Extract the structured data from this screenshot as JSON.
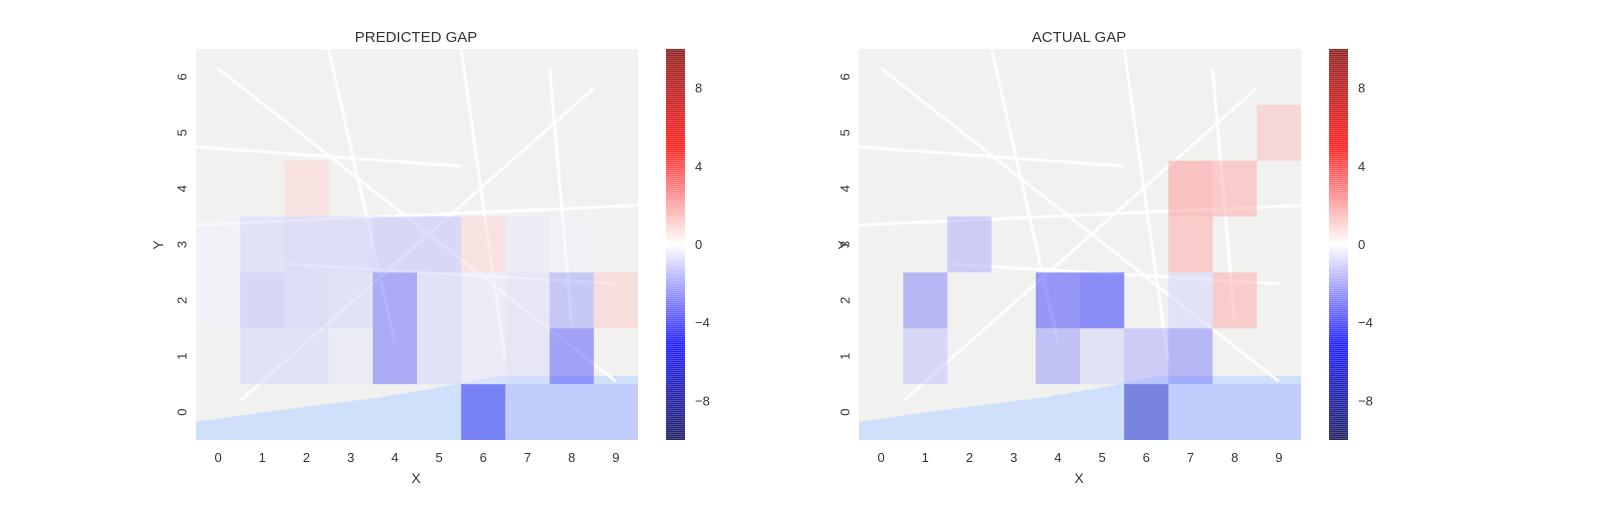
{
  "chart_data": [
    {
      "type": "heatmap",
      "title": "PREDICTED GAP",
      "xlabel": "X",
      "ylabel": "Y",
      "x_ticks": [
        "0",
        "1",
        "2",
        "3",
        "4",
        "5",
        "6",
        "7",
        "8",
        "9"
      ],
      "y_ticks": [
        "0",
        "1",
        "2",
        "3",
        "4",
        "5",
        "6"
      ],
      "colorbar": {
        "ticks": [
          8,
          4,
          0,
          -4,
          -8
        ],
        "tick_labels": [
          "8",
          "4",
          "0",
          "−4",
          "−8"
        ],
        "range": [
          -10,
          10
        ],
        "colormap": "seismic"
      },
      "values": [
        [
          0,
          0,
          0,
          0,
          0,
          0,
          -5.5,
          -1.5,
          -1.5,
          -1.5
        ],
        [
          0,
          -1,
          -1,
          -0.5,
          -3.5,
          -1,
          -0.5,
          -0.8,
          -4,
          0
        ],
        [
          -0.3,
          -1.5,
          -1.2,
          -1,
          -3.5,
          -1,
          -0.5,
          -0.8,
          -2.2,
          1.2
        ],
        [
          -0.3,
          -1,
          -1.2,
          -1.2,
          -1.5,
          -1.5,
          1,
          -0.5,
          -0.3,
          0
        ],
        [
          0,
          0,
          1,
          0,
          0,
          0,
          0,
          0,
          0,
          0
        ],
        [
          0,
          0,
          0,
          0,
          0,
          0,
          0,
          0,
          0,
          0
        ],
        [
          0,
          0,
          0,
          0,
          0,
          0,
          0,
          0,
          0,
          0
        ]
      ]
    },
    {
      "type": "heatmap",
      "title": "ACTUAL GAP",
      "xlabel": "X",
      "ylabel": "Y",
      "x_ticks": [
        "0",
        "1",
        "2",
        "3",
        "4",
        "5",
        "6",
        "7",
        "8",
        "9"
      ],
      "y_ticks": [
        "0",
        "1",
        "2",
        "3",
        "4",
        "5",
        "6"
      ],
      "colorbar": {
        "ticks": [
          8,
          4,
          0,
          -4,
          -8
        ],
        "tick_labels": [
          "8",
          "4",
          "0",
          "−4",
          "−8"
        ],
        "range": [
          -10,
          10
        ],
        "colormap": "seismic"
      },
      "values": [
        [
          0,
          0,
          0,
          0,
          0,
          0,
          -7,
          -1.5,
          -1.5,
          -1.5
        ],
        [
          0,
          -1.5,
          0,
          0,
          -2.5,
          -1,
          -2,
          -3,
          0,
          0
        ],
        [
          0,
          -3,
          0,
          0,
          -4.5,
          -5,
          0,
          -1,
          2,
          0
        ],
        [
          0,
          0,
          -2,
          0,
          0,
          0,
          0,
          2,
          0,
          0
        ],
        [
          0,
          0,
          0,
          0,
          0,
          0,
          0,
          2.5,
          2,
          0
        ],
        [
          0,
          0,
          0,
          0,
          0,
          0,
          0,
          0,
          0,
          1.5
        ],
        [
          0,
          0,
          0,
          0,
          0,
          0,
          0,
          0,
          0,
          0
        ]
      ]
    }
  ]
}
